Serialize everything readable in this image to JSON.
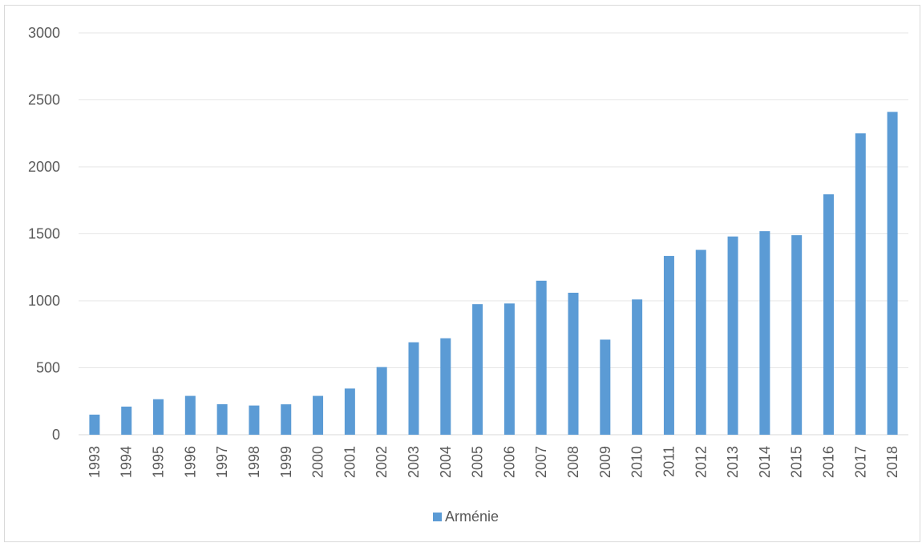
{
  "chart_data": {
    "type": "bar",
    "title": "",
    "xlabel": "",
    "ylabel": "",
    "categories": [
      "1993",
      "1994",
      "1995",
      "1996",
      "1997",
      "1998",
      "1999",
      "2000",
      "2001",
      "2002",
      "2003",
      "2004",
      "2005",
      "2006",
      "2007",
      "2008",
      "2009",
      "2010",
      "2011",
      "2012",
      "2013",
      "2014",
      "2015",
      "2016",
      "2017",
      "2018"
    ],
    "series": [
      {
        "name": "Arménie",
        "color": "#5b9bd5",
        "values": [
          150,
          210,
          265,
          290,
          228,
          218,
          227,
          290,
          345,
          505,
          690,
          720,
          975,
          980,
          1150,
          1060,
          710,
          1010,
          1335,
          1380,
          1480,
          1520,
          1490,
          1795,
          2250,
          2410
        ]
      }
    ],
    "ylim": [
      0,
      3000
    ],
    "yticks": [
      0,
      500,
      1000,
      1500,
      2000,
      2500,
      3000
    ],
    "grid": true,
    "legend_position": "bottom"
  }
}
